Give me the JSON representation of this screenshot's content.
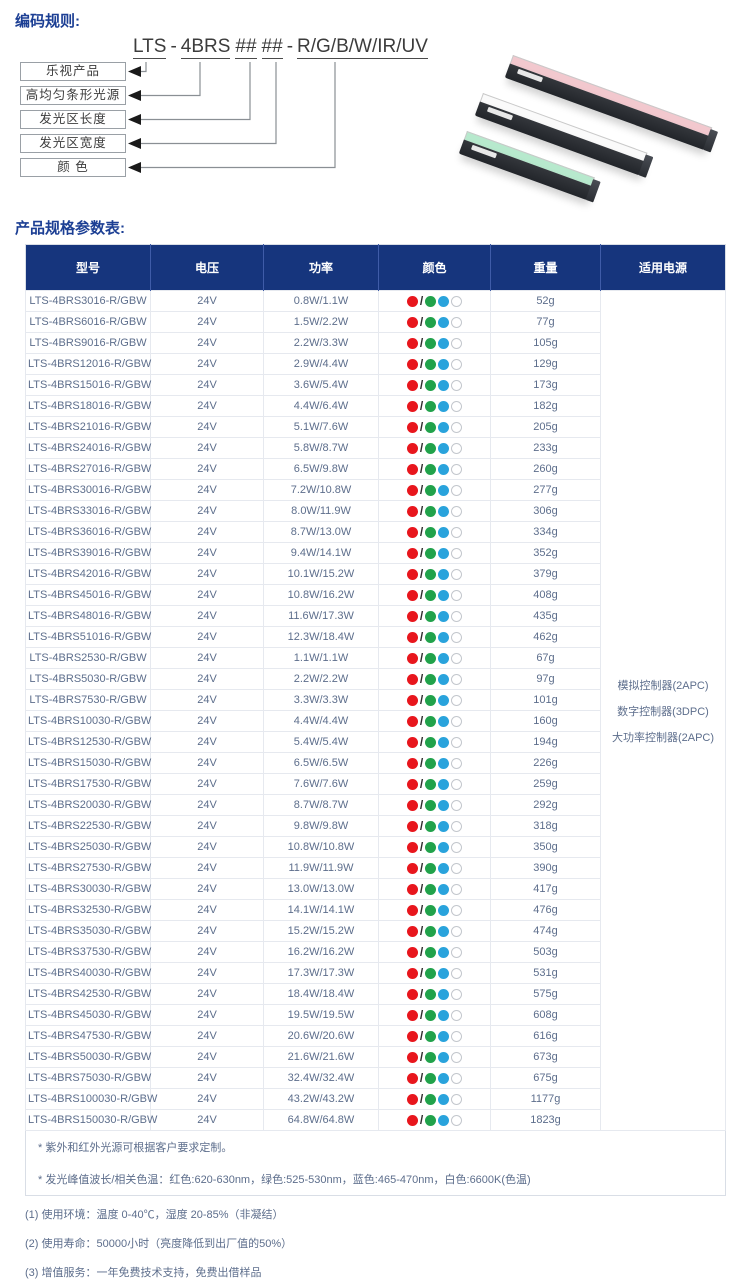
{
  "titles": {
    "coding_rules": "编码规则:",
    "spec_table": "产品规格参数表:"
  },
  "code": {
    "segments": [
      "LTS",
      "4BRS",
      "##",
      "##",
      "R/G/B/W/IR/UV"
    ],
    "separator": "-"
  },
  "coding_diagram": {
    "labels": [
      "乐视产品",
      "高均匀条形光源",
      "发光区长度",
      "发光区宽度",
      "颜 色"
    ]
  },
  "product_image": {
    "bars": [
      {
        "name": "pink-bar-light",
        "hex": "#f2c8ce"
      },
      {
        "name": "white-bar-light",
        "hex": "#fafafa"
      },
      {
        "name": "green-bar-light",
        "hex": "#b7e9cd"
      }
    ]
  },
  "table": {
    "headers": [
      "型号",
      "电压",
      "功率",
      "颜色",
      "重量",
      "适用电源"
    ],
    "header_bg": "#16357d",
    "color_legend": {
      "red": "#e8161d",
      "green": "#21a24b",
      "blue": "#29a3dc",
      "white": "#ffffff"
    },
    "power_supply": [
      "模拟控制器(2APC)",
      "数字控制器(3DPC)",
      "大功率控制器(2APC)"
    ],
    "rows": [
      {
        "model": "LTS-4BRS3016-R/GBW",
        "voltage": "24V",
        "power": "0.8W/1.1W",
        "weight": "52g"
      },
      {
        "model": "LTS-4BRS6016-R/GBW",
        "voltage": "24V",
        "power": "1.5W/2.2W",
        "weight": "77g"
      },
      {
        "model": "LTS-4BRS9016-R/GBW",
        "voltage": "24V",
        "power": "2.2W/3.3W",
        "weight": "105g"
      },
      {
        "model": "LTS-4BRS12016-R/GBW",
        "voltage": "24V",
        "power": "2.9W/4.4W",
        "weight": "129g"
      },
      {
        "model": "LTS-4BRS15016-R/GBW",
        "voltage": "24V",
        "power": "3.6W/5.4W",
        "weight": "173g"
      },
      {
        "model": "LTS-4BRS18016-R/GBW",
        "voltage": "24V",
        "power": "4.4W/6.4W",
        "weight": "182g"
      },
      {
        "model": "LTS-4BRS21016-R/GBW",
        "voltage": "24V",
        "power": "5.1W/7.6W",
        "weight": "205g"
      },
      {
        "model": "LTS-4BRS24016-R/GBW",
        "voltage": "24V",
        "power": "5.8W/8.7W",
        "weight": "233g"
      },
      {
        "model": "LTS-4BRS27016-R/GBW",
        "voltage": "24V",
        "power": "6.5W/9.8W",
        "weight": "260g"
      },
      {
        "model": "LTS-4BRS30016-R/GBW",
        "voltage": "24V",
        "power": "7.2W/10.8W",
        "weight": "277g"
      },
      {
        "model": "LTS-4BRS33016-R/GBW",
        "voltage": "24V",
        "power": "8.0W/11.9W",
        "weight": "306g"
      },
      {
        "model": "LTS-4BRS36016-R/GBW",
        "voltage": "24V",
        "power": "8.7W/13.0W",
        "weight": "334g"
      },
      {
        "model": "LTS-4BRS39016-R/GBW",
        "voltage": "24V",
        "power": "9.4W/14.1W",
        "weight": "352g"
      },
      {
        "model": "LTS-4BRS42016-R/GBW",
        "voltage": "24V",
        "power": "10.1W/15.2W",
        "weight": "379g"
      },
      {
        "model": "LTS-4BRS45016-R/GBW",
        "voltage": "24V",
        "power": "10.8W/16.2W",
        "weight": "408g"
      },
      {
        "model": "LTS-4BRS48016-R/GBW",
        "voltage": "24V",
        "power": "11.6W/17.3W",
        "weight": "435g"
      },
      {
        "model": "LTS-4BRS51016-R/GBW",
        "voltage": "24V",
        "power": "12.3W/18.4W",
        "weight": "462g"
      },
      {
        "model": "LTS-4BRS2530-R/GBW",
        "voltage": "24V",
        "power": "1.1W/1.1W",
        "weight": "67g"
      },
      {
        "model": "LTS-4BRS5030-R/GBW",
        "voltage": "24V",
        "power": "2.2W/2.2W",
        "weight": "97g"
      },
      {
        "model": "LTS-4BRS7530-R/GBW",
        "voltage": "24V",
        "power": "3.3W/3.3W",
        "weight": "101g"
      },
      {
        "model": "LTS-4BRS10030-R/GBW",
        "voltage": "24V",
        "power": "4.4W/4.4W",
        "weight": "160g"
      },
      {
        "model": "LTS-4BRS12530-R/GBW",
        "voltage": "24V",
        "power": "5.4W/5.4W",
        "weight": "194g"
      },
      {
        "model": "LTS-4BRS15030-R/GBW",
        "voltage": "24V",
        "power": "6.5W/6.5W",
        "weight": "226g"
      },
      {
        "model": "LTS-4BRS17530-R/GBW",
        "voltage": "24V",
        "power": "7.6W/7.6W",
        "weight": "259g"
      },
      {
        "model": "LTS-4BRS20030-R/GBW",
        "voltage": "24V",
        "power": "8.7W/8.7W",
        "weight": "292g"
      },
      {
        "model": "LTS-4BRS22530-R/GBW",
        "voltage": "24V",
        "power": "9.8W/9.8W",
        "weight": "318g"
      },
      {
        "model": "LTS-4BRS25030-R/GBW",
        "voltage": "24V",
        "power": "10.8W/10.8W",
        "weight": "350g"
      },
      {
        "model": "LTS-4BRS27530-R/GBW",
        "voltage": "24V",
        "power": "11.9W/11.9W",
        "weight": "390g"
      },
      {
        "model": "LTS-4BRS30030-R/GBW",
        "voltage": "24V",
        "power": "13.0W/13.0W",
        "weight": "417g"
      },
      {
        "model": "LTS-4BRS32530-R/GBW",
        "voltage": "24V",
        "power": "14.1W/14.1W",
        "weight": "476g"
      },
      {
        "model": "LTS-4BRS35030-R/GBW",
        "voltage": "24V",
        "power": "15.2W/15.2W",
        "weight": "474g"
      },
      {
        "model": "LTS-4BRS37530-R/GBW",
        "voltage": "24V",
        "power": "16.2W/16.2W",
        "weight": "503g"
      },
      {
        "model": "LTS-4BRS40030-R/GBW",
        "voltage": "24V",
        "power": "17.3W/17.3W",
        "weight": "531g"
      },
      {
        "model": "LTS-4BRS42530-R/GBW",
        "voltage": "24V",
        "power": "18.4W/18.4W",
        "weight": "575g"
      },
      {
        "model": "LTS-4BRS45030-R/GBW",
        "voltage": "24V",
        "power": "19.5W/19.5W",
        "weight": "608g"
      },
      {
        "model": "LTS-4BRS47530-R/GBW",
        "voltage": "24V",
        "power": "20.6W/20.6W",
        "weight": "616g"
      },
      {
        "model": "LTS-4BRS50030-R/GBW",
        "voltage": "24V",
        "power": "21.6W/21.6W",
        "weight": "673g"
      },
      {
        "model": "LTS-4BRS75030-R/GBW",
        "voltage": "24V",
        "power": "32.4W/32.4W",
        "weight": "675g"
      },
      {
        "model": "LTS-4BRS100030-R/GBW",
        "voltage": "24V",
        "power": "43.2W/43.2W",
        "weight": "1177g"
      },
      {
        "model": "LTS-4BRS150030-R/GBW",
        "voltage": "24V",
        "power": "64.8W/64.8W",
        "weight": "1823g"
      }
    ],
    "table_notes": [
      "* 紫外和红外光源可根据客户要求定制。",
      "* 发光峰值波长/相关色温：红色:620-630nm，绿色:525-530nm，蓝色:465-470nm，白色:6600K(色温)"
    ]
  },
  "footnotes": [
    "(1) 使用环境：温度 0-40℃，湿度 20-85%（非凝结）",
    "(2) 使用寿命：50000小时（亮度降低到出厂值的50%）",
    "(3) 增值服务：一年免费技术支持，免费出借样品"
  ]
}
